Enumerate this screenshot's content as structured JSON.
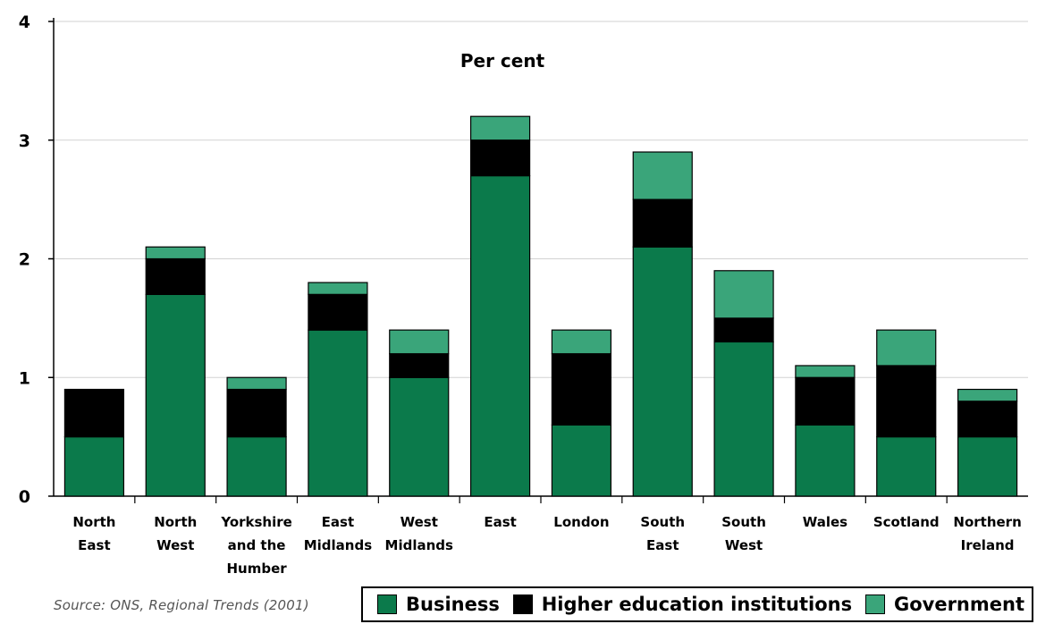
{
  "chart_data": {
    "type": "bar",
    "stacked": true,
    "ylabel": "Per cent",
    "ylim": [
      0,
      4
    ],
    "yticks": [
      0,
      1,
      2,
      3,
      4
    ],
    "grid": true,
    "categories": [
      [
        "North",
        "East"
      ],
      [
        "North",
        "West"
      ],
      [
        "Yorkshire",
        "and the",
        "Humber"
      ],
      [
        "East",
        "Midlands"
      ],
      [
        "West",
        "Midlands"
      ],
      [
        "East"
      ],
      [
        "London"
      ],
      [
        "South",
        "East"
      ],
      [
        "South",
        "West"
      ],
      [
        "Wales"
      ],
      [
        "Scotland"
      ],
      [
        "Northern",
        "Ireland"
      ]
    ],
    "series": [
      {
        "name": "Business",
        "color": "#0b7a4b",
        "values": [
          0.5,
          1.7,
          0.5,
          1.4,
          1.0,
          2.7,
          0.6,
          2.1,
          1.3,
          0.6,
          0.5,
          0.5
        ]
      },
      {
        "name": "Higher education institutions",
        "color": "#000000",
        "values": [
          0.4,
          0.3,
          0.4,
          0.3,
          0.2,
          0.3,
          0.6,
          0.4,
          0.2,
          0.4,
          0.6,
          0.3
        ]
      },
      {
        "name": "Government",
        "color": "#3aa57a",
        "values": [
          0.0,
          0.1,
          0.1,
          0.1,
          0.2,
          0.2,
          0.2,
          0.4,
          0.4,
          0.1,
          0.3,
          0.1
        ]
      }
    ],
    "legend_position": "bottom-right"
  },
  "source_text": "Source: ONS, Regional Trends (2001)"
}
